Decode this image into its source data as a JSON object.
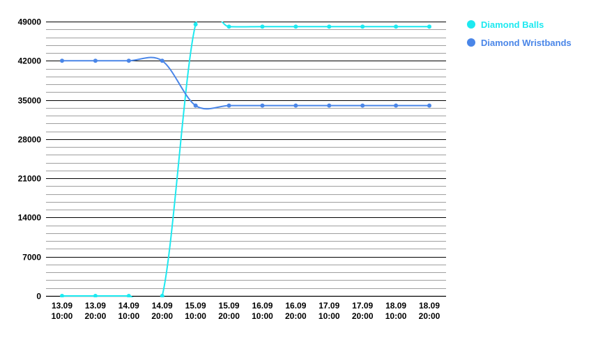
{
  "chart_data": {
    "type": "line",
    "categories": [
      [
        "13.09",
        "10:00"
      ],
      [
        "13.09",
        "20:00"
      ],
      [
        "14.09",
        "10:00"
      ],
      [
        "14.09",
        "20:00"
      ],
      [
        "15.09",
        "10:00"
      ],
      [
        "15.09",
        "20:00"
      ],
      [
        "16.09",
        "10:00"
      ],
      [
        "16.09",
        "20:00"
      ],
      [
        "17.09",
        "10:00"
      ],
      [
        "17.09",
        "20:00"
      ],
      [
        "18.09",
        "10:00"
      ],
      [
        "18.09",
        "20:00"
      ]
    ],
    "series": [
      {
        "name": "Diamond Balls",
        "color": "#1de9f0",
        "values": [
          0,
          0,
          0,
          0,
          48500,
          48100,
          48100,
          48100,
          48100,
          48100,
          48100,
          48100
        ]
      },
      {
        "name": "Diamond Wristbands",
        "color": "#4a86e8",
        "values": [
          42000,
          42000,
          42000,
          42000,
          34000,
          34000,
          34000,
          34000,
          34000,
          34000,
          34000,
          34000
        ]
      }
    ],
    "ylim": [
      0,
      49000
    ],
    "yticks": [
      0,
      7000,
      14000,
      21000,
      28000,
      35000,
      42000,
      49000
    ],
    "minor_gridlines_per_major": 4,
    "grid": true,
    "legend_position": "right",
    "title": "",
    "xlabel": "",
    "ylabel": ""
  }
}
